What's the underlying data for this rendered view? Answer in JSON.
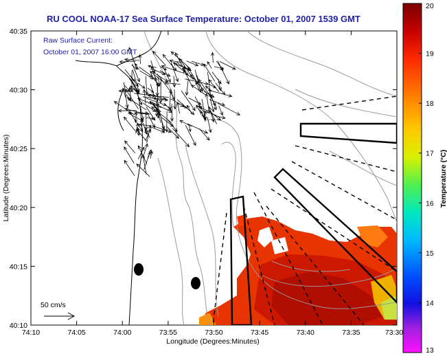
{
  "chart_data": {
    "type": "heatmap",
    "title": "RU COOL  NOAA-17  Sea Surface Temperature:  October 01, 2007 1539 GMT",
    "annotation": [
      "Raw Surface Current:",
      "October 01, 2007 16:00 GMT"
    ],
    "xlabel": "Longitude (Degrees:Minutes)",
    "ylabel": "Latitude (Degrees:Minutes)",
    "x_ticks": [
      "74:10",
      "74:05",
      "74:00",
      "73:55",
      "73:50",
      "73:45",
      "73:40",
      "73:35",
      "73:30"
    ],
    "y_ticks": [
      "40:35",
      "40:30",
      "40:25",
      "40:20",
      "40:15",
      "40:10"
    ],
    "colorbar": {
      "label": "Temperature (°C)",
      "range": [
        13,
        20
      ],
      "ticks": [
        "20",
        "19",
        "18",
        "17",
        "16",
        "15",
        "14",
        "13"
      ]
    },
    "scale_arrow_label": "50 cm/s"
  }
}
